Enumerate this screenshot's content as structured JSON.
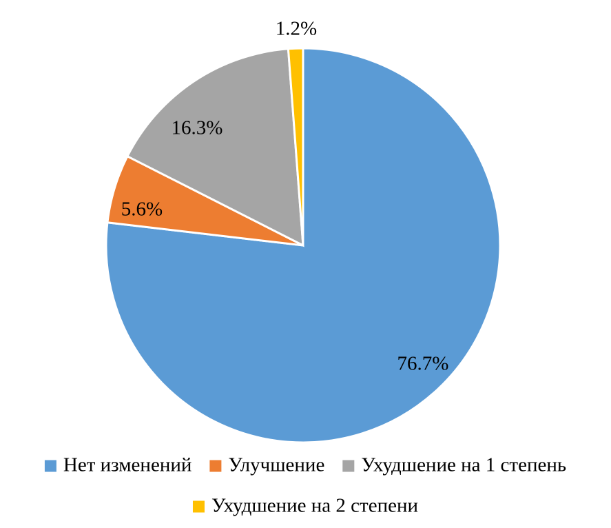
{
  "chart_data": {
    "type": "pie",
    "title": "",
    "categories": [
      "Нет изменений",
      "Улучшение",
      "Ухудшение на 1 степень",
      "Ухудшение на 2 степени"
    ],
    "values": [
      76.7,
      5.6,
      16.3,
      1.2
    ],
    "labels": [
      "76.7%",
      "5.6%",
      "16.3%",
      "1.2%"
    ],
    "colors": [
      "#5B9BD5",
      "#ED7D31",
      "#A5A5A5",
      "#FFC000"
    ],
    "start_angle_deg": 0,
    "direction": "clockwise",
    "legend_position": "bottom"
  }
}
